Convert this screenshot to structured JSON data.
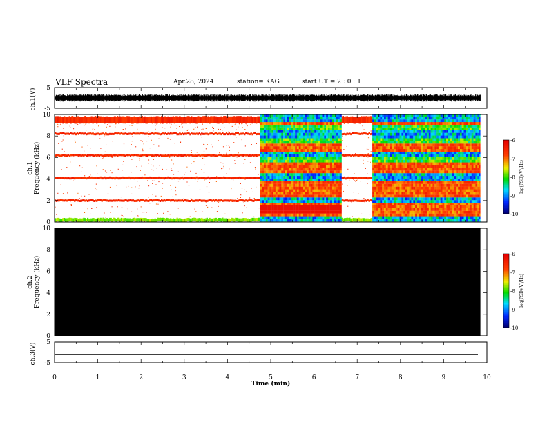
{
  "header": {
    "title": "VLF Spectra",
    "date": "Apr.28, 2024",
    "station": "station= KAG",
    "start": "start  UT =  2 : 0  : 1"
  },
  "chart_data": [
    {
      "type": "line",
      "panel": "ch1-waveform",
      "ylabel": "ch.1(V)",
      "ylim": [
        -5,
        5
      ],
      "yticks": [
        "5",
        "-5"
      ],
      "description_values": {
        "baseline": 0,
        "amplitude_approx": 1.5
      },
      "xlim": [
        0,
        10
      ]
    },
    {
      "type": "heatmap",
      "panel": "ch1-spectrogram",
      "ylabel": "ch.1\nFrequency (kHz)",
      "ylabel_lines": [
        "ch.1",
        "Frequency (kHz)"
      ],
      "ylim": [
        0,
        10
      ],
      "yticks": [
        "0",
        "2",
        "4",
        "6",
        "8",
        "10"
      ],
      "xlim": [
        0,
        10
      ],
      "colorbar": {
        "label": "log(PSD)(V²/Hz)",
        "ticks": [
          "-6",
          "-7",
          "-8",
          "-9",
          "-10"
        ],
        "range": [
          -10,
          -6
        ]
      },
      "bands_khz": [
        0.2,
        2.0,
        4.1,
        6.2,
        8.2,
        9.5
      ],
      "active_intervals_min": [
        [
          4.75,
          6.6
        ],
        [
          7.35,
          9.85
        ]
      ],
      "data_end_min": 9.85
    },
    {
      "type": "heatmap",
      "panel": "ch2-spectrogram",
      "ylabel_lines": [
        "ch.2",
        "Frequency (kHz)"
      ],
      "ylim": [
        0,
        10
      ],
      "yticks": [
        "0",
        "2",
        "4",
        "6",
        "8",
        "10"
      ],
      "xlim": [
        0,
        10
      ],
      "fill": "#000000",
      "colorbar": {
        "label": "log(PSD)(V²/Hz)",
        "ticks": [
          "-6",
          "-7",
          "-8",
          "-9",
          "-10"
        ],
        "range": [
          -10,
          -6
        ]
      }
    },
    {
      "type": "line",
      "panel": "ch3-waveform",
      "ylabel": "ch.3(V)",
      "ylim": [
        -5,
        5
      ],
      "yticks": [
        "5",
        "-5"
      ],
      "constant_value": -1.0,
      "xlim": [
        0,
        10
      ]
    }
  ],
  "xaxis": {
    "label": "Time (min)",
    "ticks": [
      "0",
      "1",
      "2",
      "3",
      "4",
      "5",
      "6",
      "7",
      "8",
      "9",
      "10"
    ]
  },
  "colors": {
    "wave": "#000000",
    "background": "#ffffff",
    "frame": "#000000"
  }
}
